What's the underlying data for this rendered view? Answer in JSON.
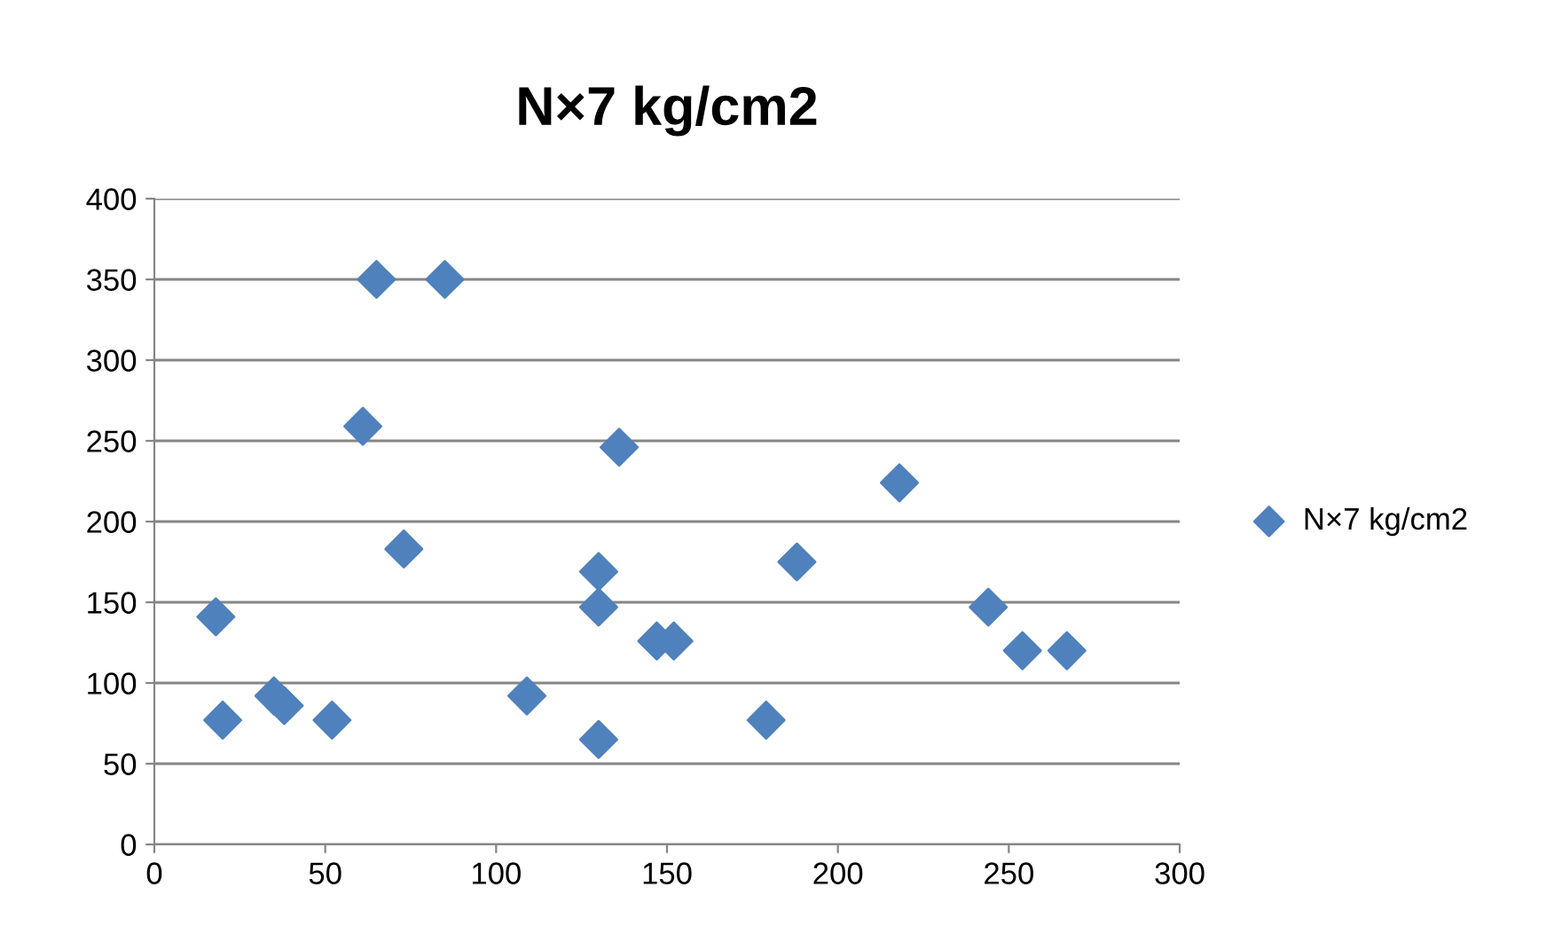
{
  "chart_data": {
    "type": "scatter",
    "title": "N×7 kg/cm2",
    "x": [
      18,
      20,
      35,
      38,
      52,
      61,
      65,
      73,
      85,
      109,
      130,
      130,
      130,
      136,
      147,
      152,
      179,
      188,
      218,
      244,
      254,
      267
    ],
    "series": [
      {
        "name": "N×7 kg/cm2",
        "color": "#4f81bd",
        "values": [
          141,
          77,
          92,
          86,
          77,
          259,
          350,
          183,
          350,
          92,
          65,
          169,
          147,
          246,
          126,
          126,
          77,
          175,
          224,
          147,
          120,
          120
        ]
      }
    ],
    "xlim": [
      0,
      300
    ],
    "xticks": [
      0,
      50,
      100,
      150,
      200,
      250,
      300
    ],
    "ylim": [
      0,
      400
    ],
    "yticks": [
      0,
      50,
      100,
      150,
      200,
      250,
      300,
      350,
      400
    ],
    "grid": "y",
    "legend": "right",
    "marker": "diamond"
  }
}
